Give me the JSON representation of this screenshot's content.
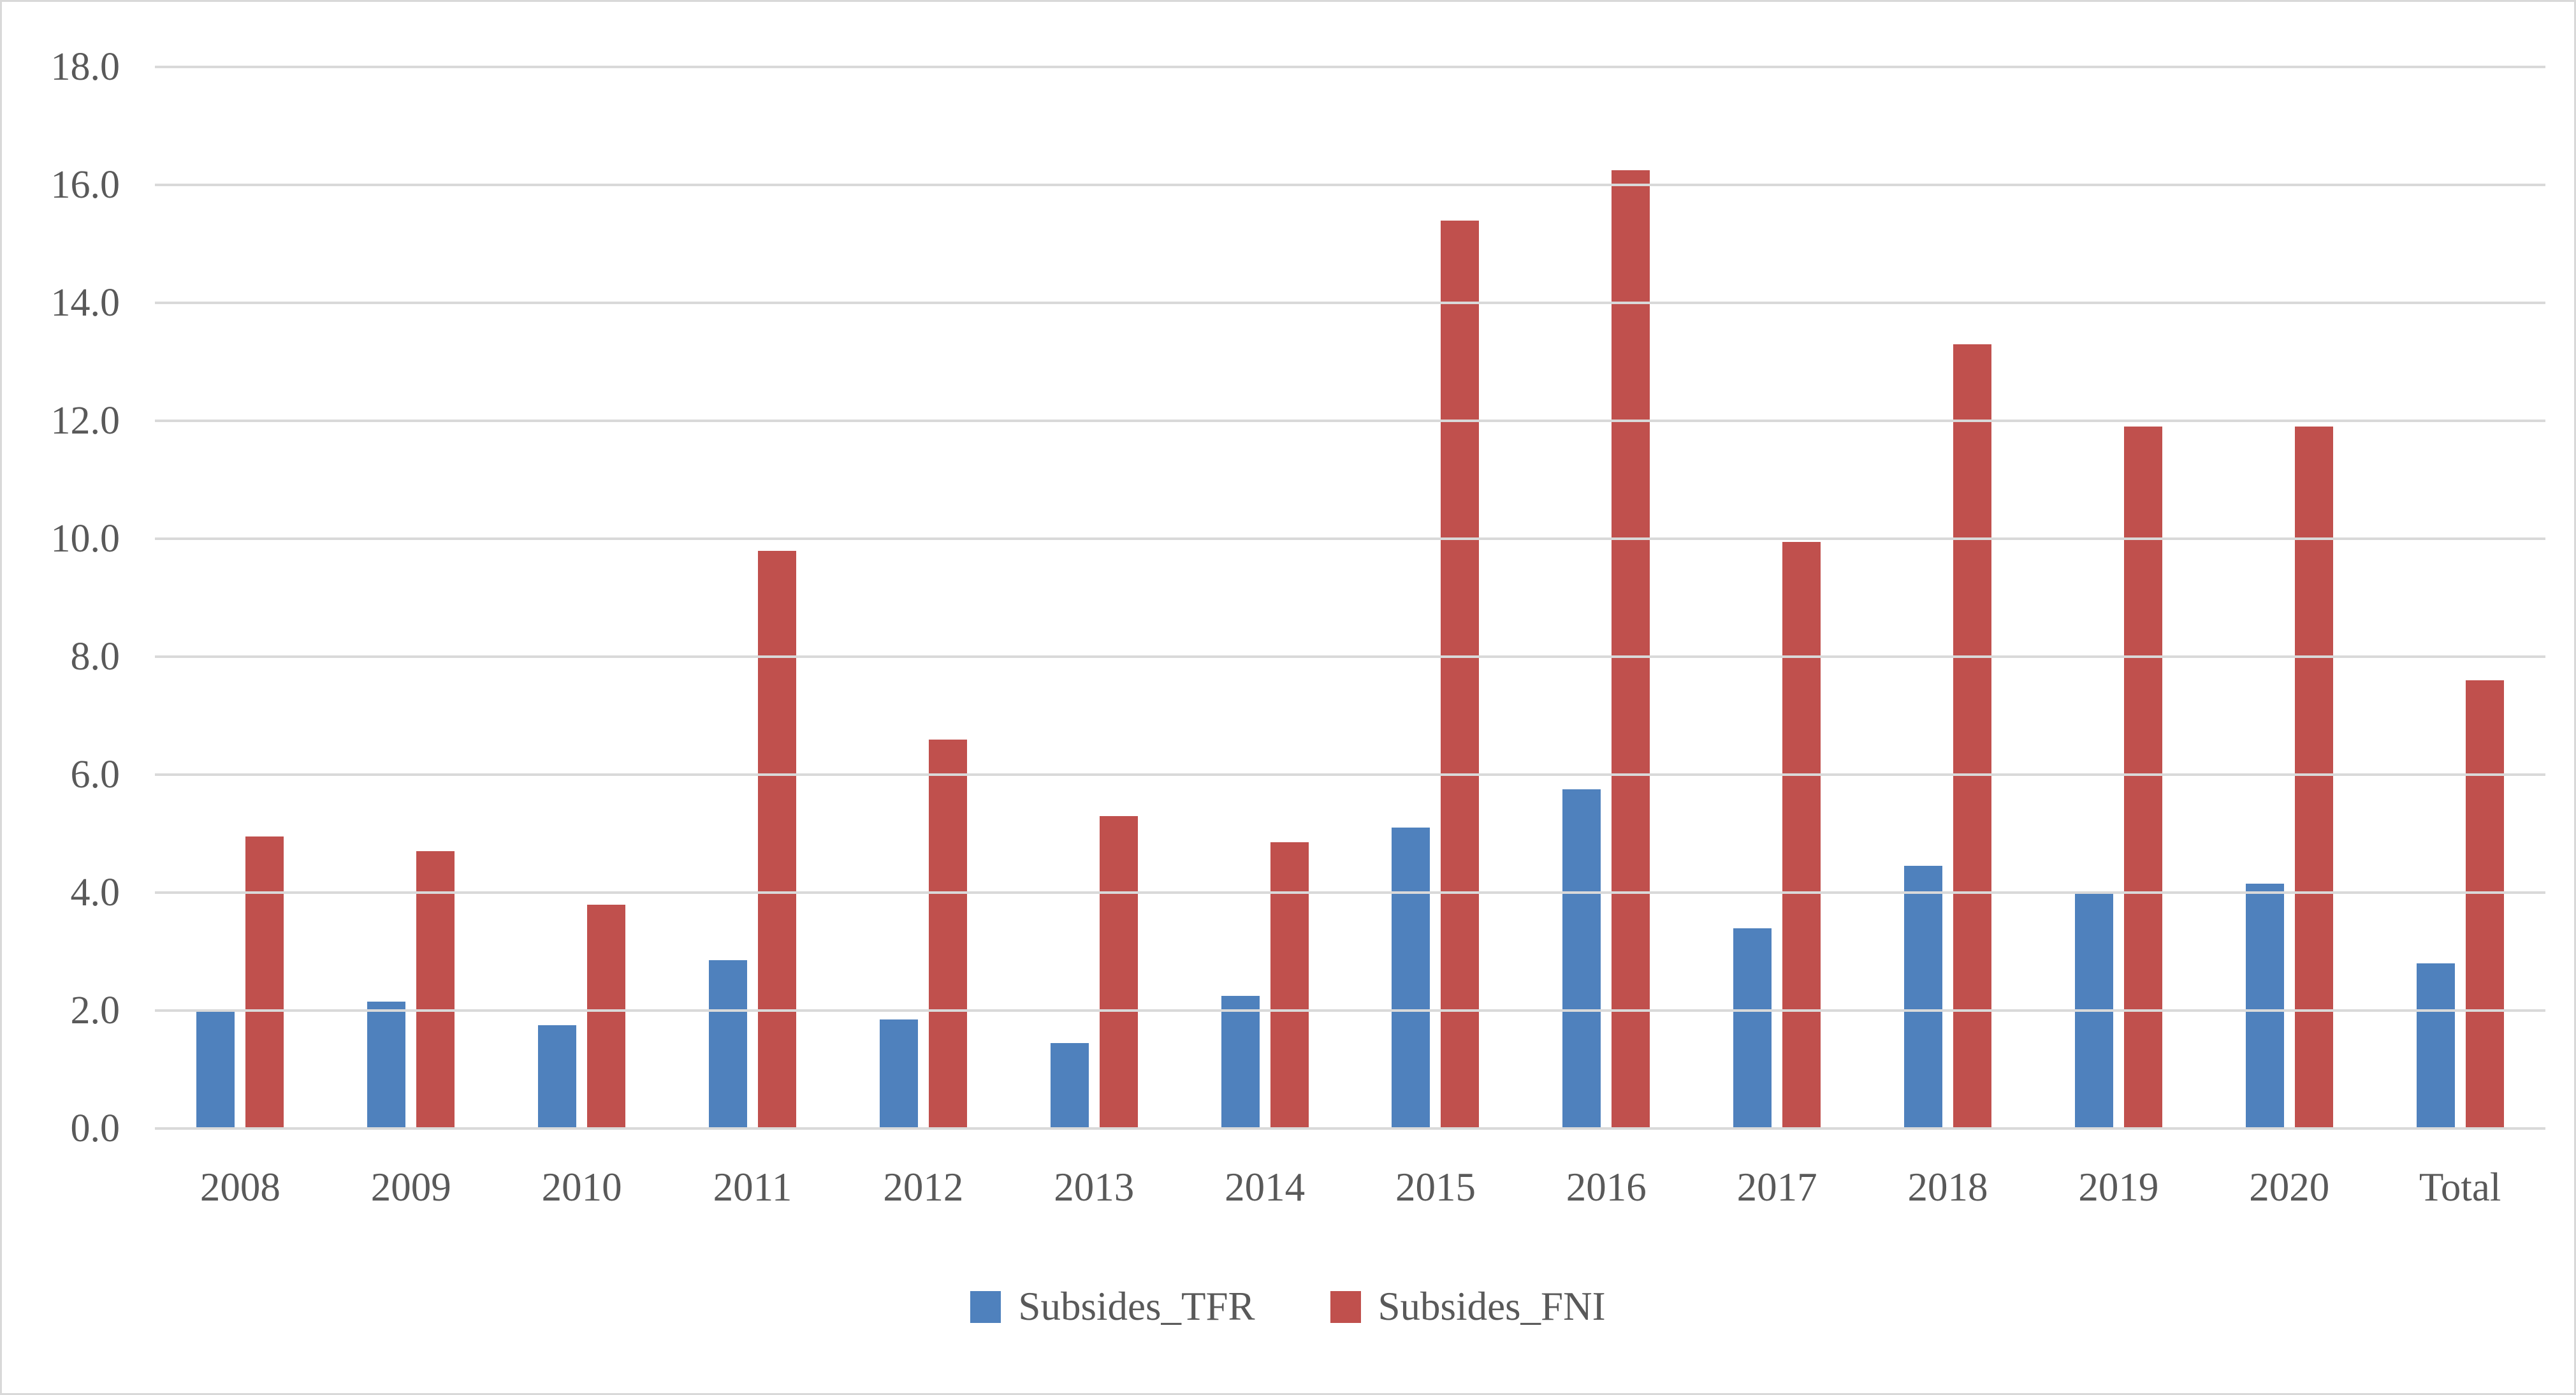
{
  "chart_data": {
    "type": "bar",
    "title": "",
    "xlabel": "",
    "ylabel": "",
    "categories": [
      "2008",
      "2009",
      "2010",
      "2011",
      "2012",
      "2013",
      "2014",
      "2015",
      "2016",
      "2017",
      "2018",
      "2019",
      "2020",
      "Total"
    ],
    "series": [
      {
        "name": "Subsides_TFR",
        "color": "#4F81BD",
        "values": [
          2.0,
          2.15,
          1.75,
          2.85,
          1.85,
          1.45,
          2.25,
          5.1,
          5.75,
          3.4,
          4.45,
          4.0,
          4.15,
          2.8
        ]
      },
      {
        "name": "Subsides_FNI",
        "color": "#C0504D",
        "values": [
          4.95,
          4.7,
          3.8,
          9.8,
          6.6,
          5.3,
          4.85,
          15.4,
          16.25,
          9.95,
          13.3,
          11.9,
          11.9,
          7.6
        ]
      }
    ],
    "ylim": [
      0,
      18
    ],
    "ytick_step": 2,
    "ytick_labels": [
      "0.0",
      "2.0",
      "4.0",
      "6.0",
      "8.0",
      "10.0",
      "12.0",
      "14.0",
      "16.0",
      "18.0"
    ],
    "grid": true,
    "gridline_color": "#d9d9d9",
    "text_color": "#595959",
    "legend_position": "bottom"
  }
}
